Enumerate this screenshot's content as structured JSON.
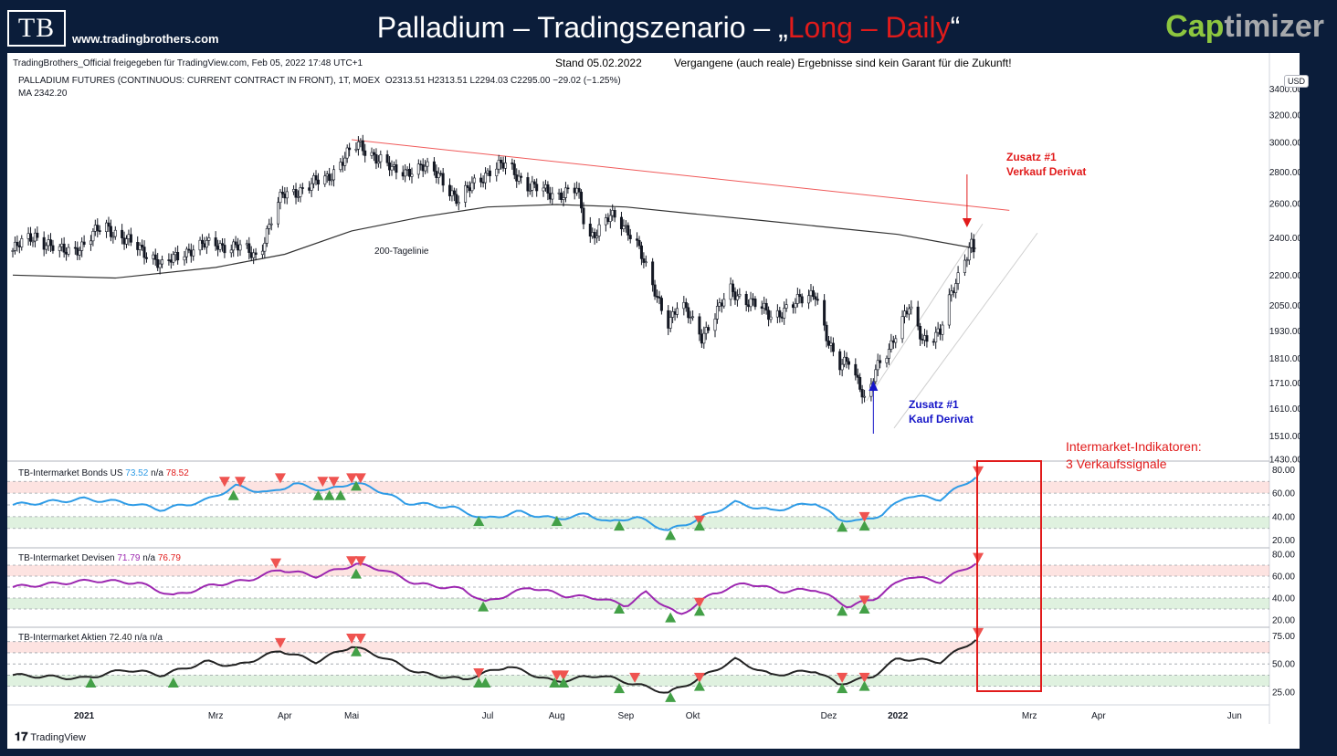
{
  "header": {
    "logo_text": "TB",
    "site_url": "www.tradingbrothers.com",
    "title_main": "Palladium – Tradingszenario – „",
    "title_red": "Long – Daily",
    "title_end": "“",
    "brand_cap": "Cap",
    "brand_rest": "timizer"
  },
  "info_bar": {
    "publisher": "TradingBrothers_Official freigegeben für TradingView.com, Feb 05, 2022 17:48 UTC+1",
    "stand": "Stand 05.02.2022",
    "disclaimer": "Vergangene (auch reale) Ergebnisse sind kein Garant für die Zukunft!"
  },
  "legend": {
    "symbol": "PALLADIUM FUTURES (CONTINUOUS: CURRENT CONTRACT IN FRONT), 1T, MOEX",
    "ohlc": "O2313.51  H2313.51  L2294.03  C2295.00  −29.02 (−1.25%)",
    "ma": "MA  2342.20"
  },
  "currency": "USD",
  "annotations": {
    "ma_label": "200-Tagelinie",
    "sell_title": "Zusatz #1",
    "sell_text": "Verkauf Derivat",
    "buy_title": "Zusatz #1",
    "buy_text": "Kauf Derivat",
    "intermarket_title": "Intermarket-Indikatoren:",
    "intermarket_text": "3 Verkaufssignale"
  },
  "footer": {
    "tv_label": "TradingView"
  },
  "colors": {
    "up": "#131722",
    "down": "#131722",
    "ma": "#333333",
    "trend": "#f05a5a",
    "bonds": "#2e9be6",
    "devisen": "#9c27b0",
    "aktien": "#222222",
    "sell_marker": "#ef5350",
    "buy_marker": "#43a047",
    "highlight": "#e11b1b"
  },
  "chart_data": [
    {
      "type": "candlestick",
      "title": "PALLADIUM FUTURES (CONTINUOUS: CURRENT CONTRACT IN FRONT), 1T, MOEX",
      "yscale": "log",
      "y_ticks": [
        1430,
        1510,
        1610,
        1710,
        1810,
        1930,
        2050,
        2200,
        2400,
        2600,
        2800,
        3000,
        3200,
        3400
      ],
      "y_tick_labels": [
        "1430.00",
        "1510.00",
        "1610.00",
        "1710.00",
        "1810.00",
        "1930.00",
        "2050.00",
        "2200.00",
        "2400.00",
        "2600.00",
        "2800.00",
        "3000.00",
        "3200.00",
        "3400.00"
      ],
      "x_labels": [
        "2021",
        "Mrz",
        "Apr",
        "Mai",
        "Jul",
        "Aug",
        "Sep",
        "Okt",
        "Dez",
        "2022",
        "Mrz",
        "Apr",
        "Jun"
      ],
      "close_path": [
        [
          "2020-11-30",
          2330
        ],
        [
          "2020-12-10",
          2420
        ],
        [
          "2020-12-20",
          2320
        ],
        [
          "2021-01-01",
          2360
        ],
        [
          "2021-01-10",
          2480
        ],
        [
          "2021-01-20",
          2380
        ],
        [
          "2021-02-01",
          2300
        ],
        [
          "2021-02-05",
          2240
        ],
        [
          "2021-02-15",
          2330
        ],
        [
          "2021-02-28",
          2370
        ],
        [
          "2021-03-10",
          2350
        ],
        [
          "2021-03-20",
          2300
        ],
        [
          "2021-03-25",
          2470
        ],
        [
          "2021-03-31",
          2650
        ],
        [
          "2021-04-10",
          2700
        ],
        [
          "2021-04-20",
          2760
        ],
        [
          "2021-04-28",
          2900
        ],
        [
          "2021-05-04",
          2980
        ],
        [
          "2021-05-10",
          2930
        ],
        [
          "2021-05-20",
          2800
        ],
        [
          "2021-06-01",
          2830
        ],
        [
          "2021-06-10",
          2780
        ],
        [
          "2021-06-18",
          2600
        ],
        [
          "2021-06-25",
          2740
        ],
        [
          "2021-07-01",
          2800
        ],
        [
          "2021-07-10",
          2850
        ],
        [
          "2021-07-20",
          2700
        ],
        [
          "2021-08-01",
          2660
        ],
        [
          "2021-08-10",
          2680
        ],
        [
          "2021-08-15",
          2400
        ],
        [
          "2021-08-25",
          2520
        ],
        [
          "2021-09-05",
          2420
        ],
        [
          "2021-09-12",
          2150
        ],
        [
          "2021-09-20",
          1980
        ],
        [
          "2021-09-25",
          2060
        ],
        [
          "2021-10-05",
          1910
        ],
        [
          "2021-10-12",
          2020
        ],
        [
          "2021-10-18",
          2120
        ],
        [
          "2021-10-25",
          2080
        ],
        [
          "2021-11-05",
          2000
        ],
        [
          "2021-11-15",
          2050
        ],
        [
          "2021-11-25",
          2120
        ],
        [
          "2021-11-30",
          1900
        ],
        [
          "2021-12-05",
          1760
        ],
        [
          "2021-12-10",
          1820
        ],
        [
          "2021-12-15",
          1700
        ],
        [
          "2021-12-18",
          1600
        ],
        [
          "2021-12-22",
          1760
        ],
        [
          "2021-12-28",
          1860
        ],
        [
          "2022-01-02",
          1960
        ],
        [
          "2022-01-06",
          2030
        ],
        [
          "2022-01-12",
          1900
        ],
        [
          "2022-01-20",
          1920
        ],
        [
          "2022-01-25",
          2100
        ],
        [
          "2022-01-31",
          2300
        ],
        [
          "2022-02-03",
          2370
        ],
        [
          "2022-02-05",
          2295
        ]
      ],
      "ma200_path": [
        [
          "2020-11-30",
          2200
        ],
        [
          "2021-01-15",
          2185
        ],
        [
          "2021-03-01",
          2240
        ],
        [
          "2021-04-01",
          2310
        ],
        [
          "2021-05-01",
          2440
        ],
        [
          "2021-06-01",
          2520
        ],
        [
          "2021-07-01",
          2580
        ],
        [
          "2021-08-01",
          2595
        ],
        [
          "2021-09-01",
          2580
        ],
        [
          "2021-10-01",
          2540
        ],
        [
          "2021-11-01",
          2500
        ],
        [
          "2021-12-01",
          2460
        ],
        [
          "2022-01-01",
          2420
        ],
        [
          "2022-02-05",
          2342
        ]
      ],
      "trendline": [
        [
          "2021-05-01",
          3020
        ],
        [
          "2022-02-20",
          2560
        ]
      ],
      "channel": [
        [
          "2021-12-18",
          1640
        ],
        [
          "2022-02-08",
          2480
        ]
      ],
      "ma_value": 2342.2,
      "last_close": 2295.0
    },
    {
      "type": "line",
      "title": "TB-Intermarket Bonds US",
      "readout": [
        "73.52",
        "n/a",
        "78.52"
      ],
      "y_ticks": [
        20,
        40,
        60,
        80
      ],
      "bands": {
        "upper": [
          60,
          70
        ],
        "lower": [
          30,
          40
        ],
        "mid": 50
      },
      "series_path": [
        [
          "2020-11-30",
          50
        ],
        [
          "2021-01-01",
          55
        ],
        [
          "2021-01-20",
          52
        ],
        [
          "2021-02-05",
          46
        ],
        [
          "2021-02-25",
          54
        ],
        [
          "2021-03-10",
          66
        ],
        [
          "2021-03-25",
          60
        ],
        [
          "2021-04-05",
          68
        ],
        [
          "2021-04-20",
          62
        ],
        [
          "2021-05-01",
          69
        ],
        [
          "2021-05-10",
          65
        ],
        [
          "2021-05-25",
          52
        ],
        [
          "2021-06-15",
          48
        ],
        [
          "2021-06-30",
          38
        ],
        [
          "2021-07-15",
          44
        ],
        [
          "2021-07-31",
          38
        ],
        [
          "2021-08-15",
          42
        ],
        [
          "2021-08-25",
          35
        ],
        [
          "2021-09-05",
          40
        ],
        [
          "2021-09-20",
          28
        ],
        [
          "2021-10-01",
          36
        ],
        [
          "2021-10-20",
          52
        ],
        [
          "2021-11-05",
          45
        ],
        [
          "2021-11-25",
          52
        ],
        [
          "2021-12-05",
          38
        ],
        [
          "2021-12-15",
          36
        ],
        [
          "2021-12-25",
          42
        ],
        [
          "2022-01-05",
          58
        ],
        [
          "2022-01-20",
          55
        ],
        [
          "2022-02-05",
          74
        ]
      ],
      "sell_signals": [
        [
          "2021-03-05",
          70
        ],
        [
          "2021-03-12",
          70
        ],
        [
          "2021-03-30",
          73
        ],
        [
          "2021-04-18",
          70
        ],
        [
          "2021-04-23",
          70
        ],
        [
          "2021-05-01",
          73
        ],
        [
          "2021-05-05",
          73
        ],
        [
          "2021-10-04",
          37
        ],
        [
          "2021-12-17",
          40
        ],
        [
          "2022-02-06",
          79
        ]
      ],
      "buy_signals": [
        [
          "2021-03-09",
          58
        ],
        [
          "2021-04-16",
          58
        ],
        [
          "2021-04-21",
          58
        ],
        [
          "2021-04-26",
          58
        ],
        [
          "2021-05-03",
          66
        ],
        [
          "2021-06-27",
          36
        ],
        [
          "2021-08-01",
          36
        ],
        [
          "2021-08-29",
          32
        ],
        [
          "2021-09-21",
          24
        ],
        [
          "2021-10-04",
          32
        ],
        [
          "2021-12-07",
          31
        ],
        [
          "2021-12-17",
          32
        ]
      ]
    },
    {
      "type": "line",
      "title": "TB-Intermarket Devisen",
      "readout": [
        "71.79",
        "n/a",
        "76.79"
      ],
      "y_ticks": [
        20,
        40,
        60,
        80
      ],
      "bands": {
        "upper": [
          60,
          70
        ],
        "lower": [
          30,
          40
        ],
        "mid": 50
      },
      "series_path": [
        [
          "2020-11-30",
          50
        ],
        [
          "2021-01-05",
          56
        ],
        [
          "2021-01-25",
          54
        ],
        [
          "2021-02-10",
          42
        ],
        [
          "2021-02-28",
          52
        ],
        [
          "2021-03-15",
          56
        ],
        [
          "2021-03-30",
          66
        ],
        [
          "2021-04-15",
          60
        ],
        [
          "2021-05-03",
          71
        ],
        [
          "2021-05-15",
          66
        ],
        [
          "2021-05-30",
          53
        ],
        [
          "2021-06-20",
          48
        ],
        [
          "2021-06-30",
          36
        ],
        [
          "2021-07-20",
          50
        ],
        [
          "2021-08-05",
          42
        ],
        [
          "2021-08-20",
          40
        ],
        [
          "2021-09-01",
          33
        ],
        [
          "2021-09-10",
          45
        ],
        [
          "2021-09-25",
          24
        ],
        [
          "2021-10-10",
          44
        ],
        [
          "2021-10-25",
          54
        ],
        [
          "2021-11-10",
          46
        ],
        [
          "2021-11-25",
          48
        ],
        [
          "2021-12-10",
          32
        ],
        [
          "2021-12-22",
          40
        ],
        [
          "2022-01-05",
          60
        ],
        [
          "2022-01-20",
          55
        ],
        [
          "2022-02-05",
          72
        ]
      ],
      "sell_signals": [
        [
          "2021-03-28",
          72
        ],
        [
          "2021-05-01",
          74
        ],
        [
          "2021-05-05",
          74
        ],
        [
          "2021-10-04",
          36
        ],
        [
          "2021-12-17",
          38
        ],
        [
          "2022-02-06",
          77
        ]
      ],
      "buy_signals": [
        [
          "2021-05-03",
          62
        ],
        [
          "2021-06-29",
          32
        ],
        [
          "2021-08-29",
          30
        ],
        [
          "2021-09-21",
          22
        ],
        [
          "2021-10-04",
          28
        ],
        [
          "2021-12-07",
          28
        ],
        [
          "2021-12-17",
          30
        ]
      ]
    },
    {
      "type": "line",
      "title": "TB-Intermarket Aktien",
      "readout": [
        "72.40",
        "n/a",
        "n/a"
      ],
      "y_ticks": [
        25,
        50,
        75
      ],
      "bands": {
        "upper": [
          60,
          70
        ],
        "lower": [
          30,
          40
        ],
        "mid": 50
      },
      "series_path": [
        [
          "2020-11-30",
          40
        ],
        [
          "2021-01-01",
          37
        ],
        [
          "2021-01-20",
          45
        ],
        [
          "2021-02-05",
          40
        ],
        [
          "2021-02-25",
          52
        ],
        [
          "2021-03-10",
          48
        ],
        [
          "2021-03-30",
          62
        ],
        [
          "2021-04-15",
          52
        ],
        [
          "2021-05-01",
          66
        ],
        [
          "2021-05-15",
          56
        ],
        [
          "2021-05-31",
          42
        ],
        [
          "2021-06-20",
          36
        ],
        [
          "2021-07-10",
          48
        ],
        [
          "2021-07-31",
          34
        ],
        [
          "2021-08-20",
          40
        ],
        [
          "2021-09-05",
          32
        ],
        [
          "2021-09-20",
          24
        ],
        [
          "2021-10-01",
          34
        ],
        [
          "2021-10-20",
          54
        ],
        [
          "2021-11-05",
          40
        ],
        [
          "2021-11-25",
          44
        ],
        [
          "2021-12-05",
          32
        ],
        [
          "2021-12-20",
          38
        ],
        [
          "2022-01-01",
          55
        ],
        [
          "2022-01-20",
          52
        ],
        [
          "2022-02-05",
          72
        ]
      ],
      "sell_signals": [
        [
          "2021-03-30",
          69
        ],
        [
          "2021-05-01",
          73
        ],
        [
          "2021-05-05",
          73
        ],
        [
          "2021-06-27",
          42
        ],
        [
          "2021-08-01",
          40
        ],
        [
          "2021-08-04",
          40
        ],
        [
          "2021-09-05",
          38
        ],
        [
          "2021-10-04",
          38
        ],
        [
          "2021-12-07",
          38
        ],
        [
          "2021-12-17",
          38
        ],
        [
          "2022-02-06",
          78
        ]
      ],
      "buy_signals": [
        [
          "2021-01-04",
          33
        ],
        [
          "2021-02-10",
          33
        ],
        [
          "2021-05-03",
          61
        ],
        [
          "2021-06-27",
          33
        ],
        [
          "2021-06-30",
          33
        ],
        [
          "2021-07-31",
          33
        ],
        [
          "2021-08-04",
          33
        ],
        [
          "2021-08-29",
          28
        ],
        [
          "2021-09-21",
          20
        ],
        [
          "2021-10-04",
          30
        ],
        [
          "2021-12-07",
          28
        ],
        [
          "2021-12-17",
          30
        ]
      ]
    }
  ]
}
